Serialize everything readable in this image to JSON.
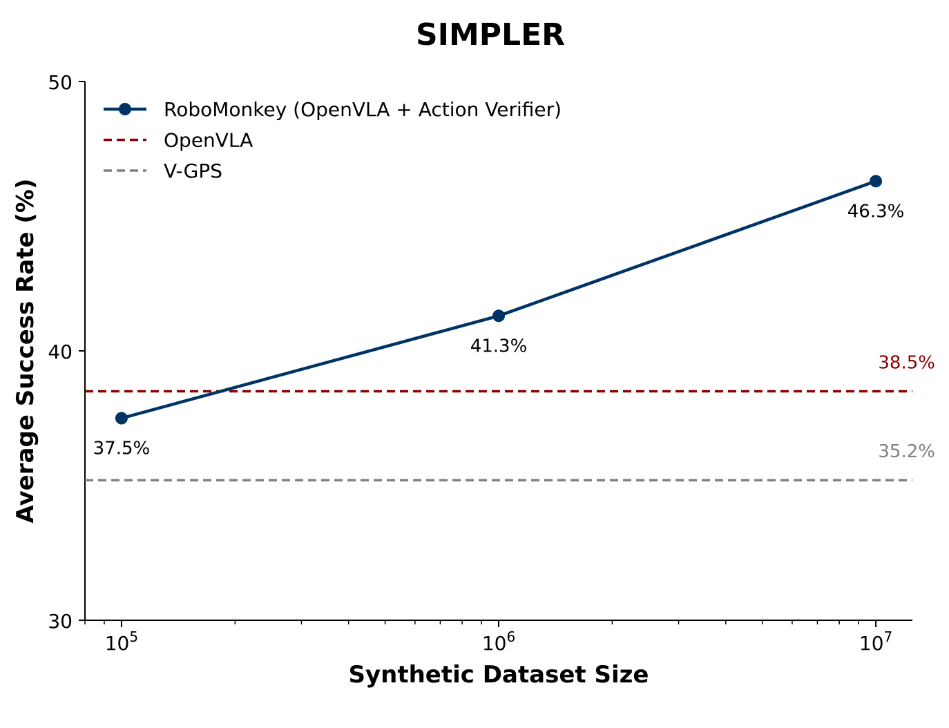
{
  "chart_data": {
    "type": "line",
    "title": "SIMPLER",
    "xlabel": "Synthetic Dataset Size",
    "ylabel": "Average Success Rate (%)",
    "x_scale": "log",
    "xlim": [
      80000,
      12500000
    ],
    "ylim": [
      30,
      50
    ],
    "x_ticks": [
      {
        "value": 100000,
        "base": "10",
        "exp": "5"
      },
      {
        "value": 1000000,
        "base": "10",
        "exp": "6"
      },
      {
        "value": 10000000,
        "base": "10",
        "exp": "7"
      }
    ],
    "y_ticks": [
      {
        "value": 30,
        "label": "30"
      },
      {
        "value": 40,
        "label": "40"
      },
      {
        "value": 50,
        "label": "50"
      }
    ],
    "grid": false,
    "legend_position": "top-left",
    "series": [
      {
        "name": "RoboMonkey (OpenVLA + Action Verifier)",
        "color": "#003366",
        "style": "solid-with-markers",
        "points": [
          {
            "x": 100000,
            "y": 37.5,
            "label": "37.5%"
          },
          {
            "x": 1000000,
            "y": 41.3,
            "label": "41.3%"
          },
          {
            "x": 10000000,
            "y": 46.3,
            "label": "46.3%"
          }
        ]
      }
    ],
    "baselines": [
      {
        "name": "OpenVLA",
        "value": 38.5,
        "label": "38.5%",
        "color": "#8b0000",
        "style": "dashed"
      },
      {
        "name": "V-GPS",
        "value": 35.2,
        "label": "35.2%",
        "color": "#808080",
        "style": "dashed"
      }
    ]
  }
}
